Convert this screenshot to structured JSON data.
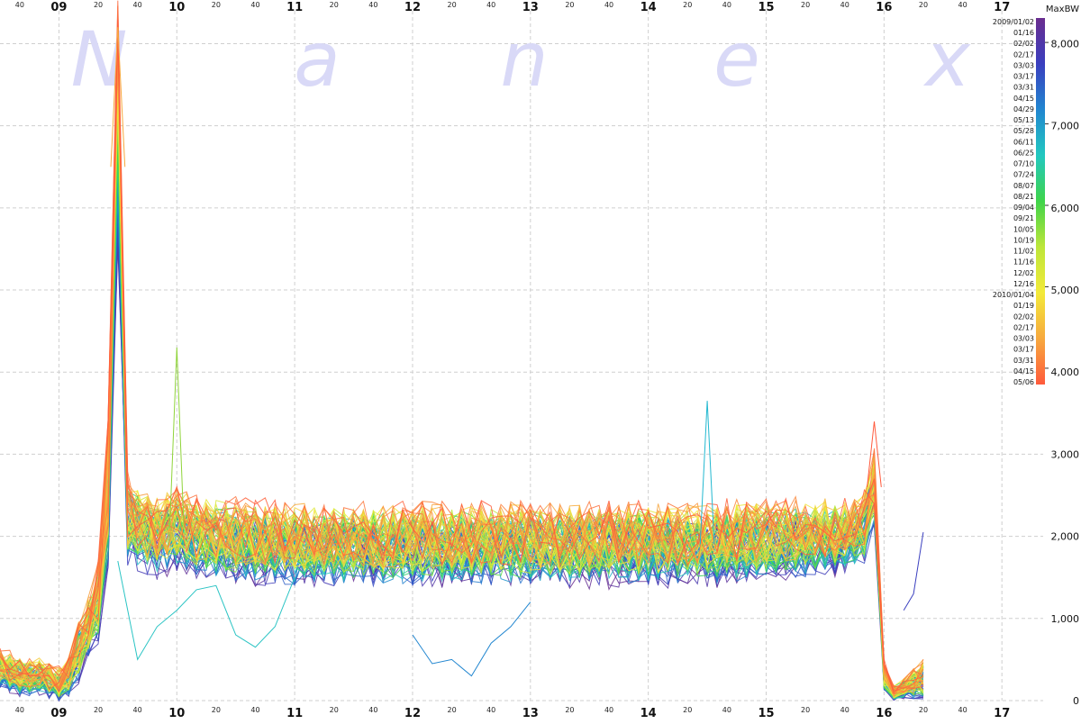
{
  "chart_data": {
    "type": "line",
    "watermark": [
      "N",
      "a",
      "n",
      "e",
      "x"
    ],
    "x_axis": {
      "hour_labels": [
        "09",
        "10",
        "11",
        "12",
        "13",
        "14",
        "15",
        "16",
        "17"
      ],
      "minute_labels": [
        "20",
        "40"
      ],
      "leading_minute_label": "40",
      "range_hours": [
        8.5,
        17.35
      ]
    },
    "y_axis": {
      "side": "right",
      "range": [
        0,
        8400
      ],
      "ticks": [
        0,
        1000,
        2000,
        3000,
        4000,
        5000,
        6000,
        7000,
        8000
      ],
      "tick_labels": [
        "0",
        "1,000",
        "2,000",
        "3,000",
        "4,000",
        "5,000",
        "6,000",
        "7,000",
        "8,000"
      ]
    },
    "grid": true,
    "legend": {
      "placement": "top-right",
      "title": "MaxBW",
      "colorbar_range": [
        3800,
        8300
      ],
      "colorbar_colors": [
        "#6a2d8f",
        "#3a3fbf",
        "#2186d0",
        "#22c8c0",
        "#3fd44a",
        "#bde63a",
        "#f3ea3a",
        "#f7a93e",
        "#ff5a3c"
      ],
      "dates": [
        "2009/01/02",
        "01/16",
        "02/02",
        "02/17",
        "03/03",
        "03/17",
        "03/31",
        "04/15",
        "04/29",
        "05/13",
        "05/28",
        "06/11",
        "06/25",
        "07/10",
        "07/24",
        "08/07",
        "08/21",
        "09/04",
        "09/21",
        "10/05",
        "10/19",
        "11/02",
        "11/16",
        "12/02",
        "12/16",
        "2010/01/04",
        "01/19",
        "02/02",
        "02/17",
        "03/03",
        "03/17",
        "03/31",
        "04/15",
        "05/06"
      ]
    },
    "profile": {
      "x_hours": [
        8.5,
        8.583,
        8.667,
        8.75,
        8.833,
        8.917,
        9.0,
        9.083,
        9.167,
        9.25,
        9.333,
        9.417,
        9.5,
        9.583,
        9.667,
        9.75,
        9.833,
        9.917,
        10.0,
        10.083,
        10.167,
        10.25,
        10.5,
        11.0,
        11.5,
        12.0,
        12.5,
        13.0,
        13.5,
        14.0,
        14.5,
        15.0,
        15.5,
        15.667,
        15.75,
        15.833,
        15.917,
        16.0,
        16.083,
        16.167,
        16.25,
        16.333
      ],
      "median_values": [
        400,
        350,
        300,
        280,
        300,
        250,
        200,
        300,
        600,
        900,
        1200,
        2500,
        6500,
        2200,
        2100,
        2050,
        2000,
        2050,
        2100,
        2050,
        2000,
        2000,
        1950,
        1900,
        1900,
        1900,
        1900,
        1900,
        1900,
        1900,
        1900,
        1950,
        2000,
        2000,
        2050,
        2100,
        2600,
        300,
        100,
        150,
        200,
        250
      ],
      "spread_values": [
        200,
        200,
        200,
        180,
        180,
        180,
        170,
        200,
        300,
        300,
        400,
        700,
        1300,
        450,
        400,
        400,
        400,
        400,
        400,
        400,
        400,
        400,
        400,
        400,
        400,
        400,
        400,
        400,
        400,
        400,
        400,
        400,
        380,
        350,
        350,
        350,
        350,
        150,
        80,
        100,
        150,
        200
      ]
    },
    "notable_spikes": [
      {
        "x_hour": 9.5,
        "value": 8200,
        "series_color": "#f7a93e"
      },
      {
        "x_hour": 10.0,
        "value": 4300,
        "series_color": "#8fd43a"
      },
      {
        "x_hour": 14.5,
        "value": 3650,
        "series_color": "#22b8d0"
      },
      {
        "x_hour": 15.917,
        "value": 3400,
        "series_color": "#ff5a3c"
      }
    ],
    "outlier_series": [
      {
        "color": "#2bc4c4",
        "x_hours": [
          9.5,
          9.667,
          9.833,
          10.0,
          10.167,
          10.333,
          10.5,
          10.667,
          10.833,
          11.0
        ],
        "values": [
          1700,
          500,
          900,
          1100,
          1350,
          1400,
          800,
          650,
          900,
          1500
        ]
      },
      {
        "color": "#2186d0",
        "x_hours": [
          12.0,
          12.167,
          12.333,
          12.5,
          12.667,
          12.833,
          13.0
        ],
        "values": [
          800,
          450,
          500,
          300,
          700,
          900,
          1200
        ]
      },
      {
        "color": "#3a3fbf",
        "x_hours": [
          16.167,
          16.25,
          16.333
        ],
        "values": [
          1100,
          1300,
          2050
        ]
      }
    ],
    "series_count": 84
  }
}
